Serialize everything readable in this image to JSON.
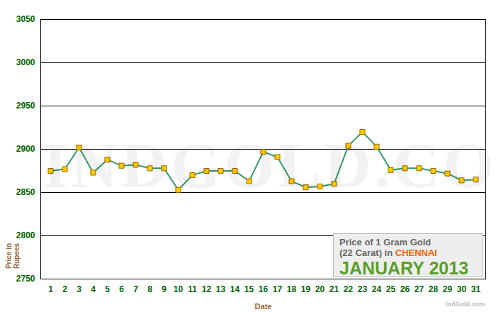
{
  "chart_data": {
    "type": "line",
    "title": "Price of 1 Gram Gold (22 Carat) in CHENNAI",
    "subtitle": "JANUARY 2013",
    "x_label": "Date",
    "y_label": "Price in Rupees",
    "source": "IndGold.com",
    "categories": [
      "1",
      "2",
      "3",
      "4",
      "5",
      "6",
      "7",
      "8",
      "9",
      "10",
      "11",
      "12",
      "13",
      "14",
      "15",
      "16",
      "17",
      "18",
      "19",
      "20",
      "21",
      "22",
      "23",
      "24",
      "25",
      "26",
      "27",
      "28",
      "29",
      "30",
      "31"
    ],
    "values": [
      2875,
      2877,
      2902,
      2873,
      2888,
      2881,
      2882,
      2878,
      2878,
      2853,
      2870,
      2875,
      2875,
      2875,
      2863,
      2897,
      2891,
      2863,
      2856,
      2857,
      2860,
      2904,
      2920,
      2903,
      2876,
      2878,
      2878,
      2875,
      2872,
      2864,
      2865
    ],
    "color": "#339966",
    "marker": "square",
    "ylim": [
      2750,
      3050
    ],
    "yticks": [
      2750,
      2800,
      2850,
      2900,
      2950,
      3000,
      3050
    ],
    "grid": true
  }
}
